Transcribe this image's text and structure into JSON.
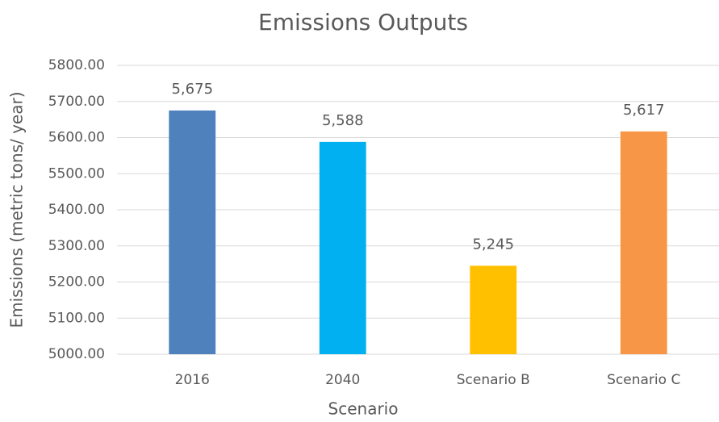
{
  "chart_data": {
    "type": "bar",
    "title": "Emissions Outputs",
    "x_label": "Scenario",
    "y_label": "Emissions (metric tons/ year)",
    "categories": [
      "2016",
      "2040",
      "Scenario B",
      "Scenario C"
    ],
    "values": [
      5675,
      5588,
      5245,
      5617
    ],
    "value_labels": [
      "5,675",
      "5,588",
      "5,245",
      "5,617"
    ],
    "colors": [
      "#4f81bd",
      "#00b0f0",
      "#ffc000",
      "#f79646"
    ],
    "ylim": [
      5000,
      5800
    ],
    "yticks": [
      {
        "value": 5000,
        "label": "5000.00"
      },
      {
        "value": 5100,
        "label": "5100.00"
      },
      {
        "value": 5200,
        "label": "5200.00"
      },
      {
        "value": 5300,
        "label": "5300.00"
      },
      {
        "value": 5400,
        "label": "5400.00"
      },
      {
        "value": 5500,
        "label": "5500.00"
      },
      {
        "value": 5600,
        "label": "5600.00"
      },
      {
        "value": 5700,
        "label": "5700.00"
      },
      {
        "value": 5800,
        "label": "5800.00"
      }
    ],
    "grid": true
  }
}
